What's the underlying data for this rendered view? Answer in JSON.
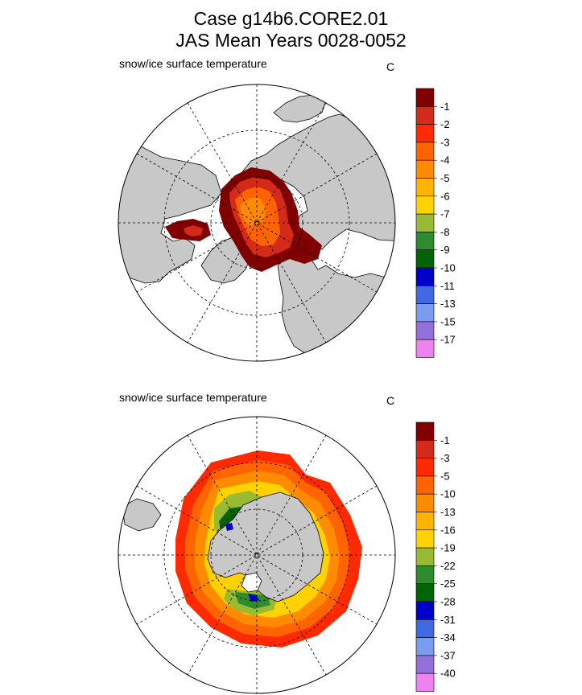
{
  "figure": {
    "title_line1": "Case g14b6.CORE2.01",
    "title_line2": "JAS Mean   Years 0028-0052"
  },
  "panels": [
    {
      "hemisphere": "north",
      "variable_label": "snow/ice surface temperature",
      "units": "C",
      "colorbar": {
        "colors": [
          "#800000",
          "#d42a1a",
          "#ff2a00",
          "#ff6400",
          "#ff8c00",
          "#ffb400",
          "#ffd200",
          "#99bb33",
          "#2e8b2e",
          "#006400",
          "#0000cd",
          "#4169e1",
          "#7b9bf0",
          "#9370db",
          "#ee82ee"
        ],
        "labels": [
          "-1",
          "-2",
          "-3",
          "-4",
          "-5",
          "-6",
          "-7",
          "-8",
          "-9",
          "-10",
          "-11",
          "-13",
          "-15",
          "-17"
        ]
      }
    },
    {
      "hemisphere": "south",
      "variable_label": "snow/ice surface temperature",
      "units": "C",
      "colorbar": {
        "colors": [
          "#800000",
          "#d42a1a",
          "#ff2a00",
          "#ff6400",
          "#ff8c00",
          "#ffb400",
          "#ffd200",
          "#99bb33",
          "#2e8b2e",
          "#006400",
          "#0000cd",
          "#4169e1",
          "#7b9bf0",
          "#9370db",
          "#ee82ee"
        ],
        "labels": [
          "-1",
          "-3",
          "-5",
          "-10",
          "-13",
          "-16",
          "-19",
          "-22",
          "-25",
          "-28",
          "-31",
          "-34",
          "-37",
          "-40"
        ]
      }
    }
  ]
}
